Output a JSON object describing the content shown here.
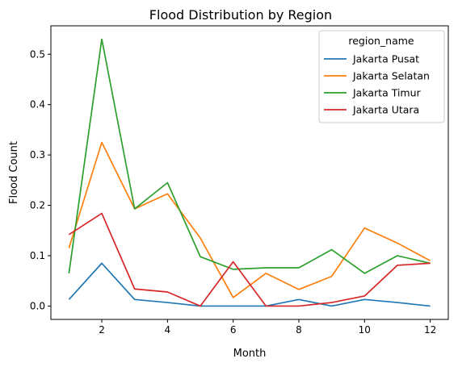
{
  "chart_data": {
    "type": "line",
    "title": "Flood Distribution by Region",
    "xlabel": "Month",
    "ylabel": "Flood Count",
    "x": [
      1,
      2,
      3,
      4,
      5,
      6,
      7,
      8,
      9,
      10,
      11,
      12
    ],
    "xlim": [
      0.45,
      12.55
    ],
    "ylim": [
      -0.0265,
      0.5565
    ],
    "x_ticks": [
      "2",
      "4",
      "6",
      "8",
      "10",
      "12"
    ],
    "y_ticks": [
      "0.0",
      "0.1",
      "0.2",
      "0.3",
      "0.4",
      "0.5"
    ],
    "grid": false,
    "legend": {
      "title": "region_name",
      "placement": "top-right"
    },
    "series": [
      {
        "name": "Jakarta Pusat",
        "color": "#1f77b4",
        "values": [
          0.013,
          0.085,
          0.013,
          0.007,
          0.0,
          0.0,
          0.0,
          0.013,
          0.0,
          0.013,
          0.007,
          0.0
        ]
      },
      {
        "name": "Jakarta Selatan",
        "color": "#ff7f0e",
        "values": [
          0.115,
          0.325,
          0.193,
          0.223,
          0.135,
          0.017,
          0.065,
          0.033,
          0.059,
          0.155,
          0.125,
          0.09
        ]
      },
      {
        "name": "Jakarta Timur",
        "color": "#2ca02c",
        "values": [
          0.065,
          0.53,
          0.193,
          0.245,
          0.098,
          0.073,
          0.076,
          0.076,
          0.112,
          0.065,
          0.1,
          0.085
        ]
      },
      {
        "name": "Jakarta Utara",
        "color": "#d62728",
        "values": [
          0.142,
          0.184,
          0.034,
          0.028,
          0.0,
          0.088,
          0.0,
          0.0,
          0.007,
          0.02,
          0.081,
          0.085
        ]
      }
    ]
  }
}
